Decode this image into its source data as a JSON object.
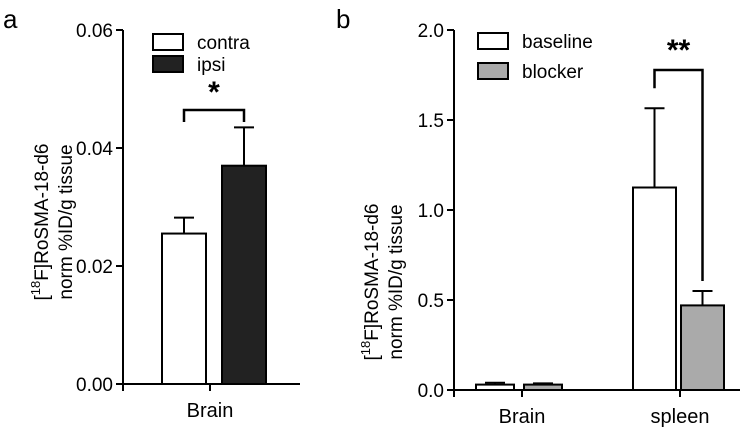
{
  "chart_data": [
    {
      "panel": "a",
      "type": "bar",
      "ylabel_line1_pre": "[",
      "ylabel_sup": "18",
      "ylabel_line1_post": "F]RoSMA-18-d6",
      "ylabel_line2": "norm %ID/g tissue",
      "ylim": [
        0,
        0.06
      ],
      "yticks": [
        "0.00",
        "0.02",
        "0.04",
        "0.06"
      ],
      "ytick_values": [
        0,
        0.02,
        0.04,
        0.06
      ],
      "categories": [
        "Brain"
      ],
      "series": [
        {
          "name": "contra",
          "values": [
            0.0255
          ],
          "errors": [
            0.0027
          ],
          "color": "#ffffff"
        },
        {
          "name": "ipsi",
          "values": [
            0.037
          ],
          "errors": [
            0.0065
          ],
          "color": "#222222"
        }
      ],
      "significance": [
        {
          "label": "*",
          "category": "Brain",
          "between": [
            "contra",
            "ipsi"
          ]
        }
      ],
      "legend": "top-left"
    },
    {
      "panel": "b",
      "type": "bar",
      "ylabel_line1_pre": "[",
      "ylabel_sup": "18",
      "ylabel_line1_post": "F]RoSMA-18-d6",
      "ylabel_line2": "norm %ID/g tissue",
      "ylim": [
        0,
        2.0
      ],
      "yticks": [
        "0.0",
        "0.5",
        "1.0",
        "1.5",
        "2.0"
      ],
      "ytick_values": [
        0,
        0.5,
        1.0,
        1.5,
        2.0
      ],
      "categories": [
        "Brain",
        "spleen"
      ],
      "series": [
        {
          "name": "baseline",
          "values": [
            0.03,
            1.125
          ],
          "errors": [
            0.01,
            0.44
          ],
          "color": "#ffffff"
        },
        {
          "name": "blocker",
          "values": [
            0.03,
            0.47
          ],
          "errors": [
            0.007,
            0.08
          ],
          "color": "#aaaaaa"
        }
      ],
      "significance": [
        {
          "label": "**",
          "category": "spleen",
          "between": [
            "baseline",
            "blocker"
          ]
        }
      ],
      "legend": "top-left"
    }
  ]
}
